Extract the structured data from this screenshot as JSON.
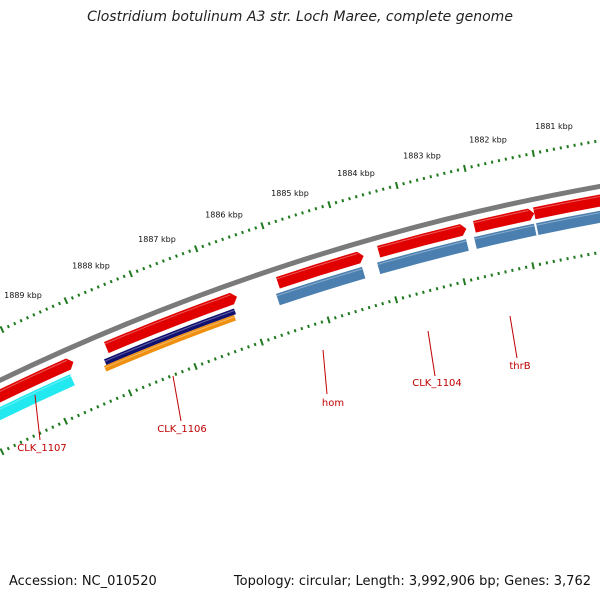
{
  "title": "Clostridium botulinum A3 str. Loch Maree, complete genome",
  "footer": {
    "accession": "Accession: NC_010520",
    "stats": "Topology: circular; Length: 3,992,906 bp; Genes: 3,762"
  },
  "colors": {
    "backbone": "#7a7a7a",
    "tick": "#1f7a1f",
    "cds_forward": "#e00000",
    "gene_blue": "#4a7fb0",
    "gene_cyan": "#22e8f0",
    "gene_navy": "#101070",
    "gene_orange": "#f09010",
    "label": "#c00000",
    "kbp_text": "#111111"
  },
  "kbp_labels": [
    "1889 kbp",
    "1888 kbp",
    "1887 kbp",
    "1886 kbp",
    "1885 kbp",
    "1884 kbp",
    "1883 kbp",
    "1882 kbp",
    "1881 kbp"
  ],
  "gene_labels": [
    "CLK_1107",
    "CLK_1106",
    "hom",
    "CLK_1104",
    "thrB"
  ]
}
